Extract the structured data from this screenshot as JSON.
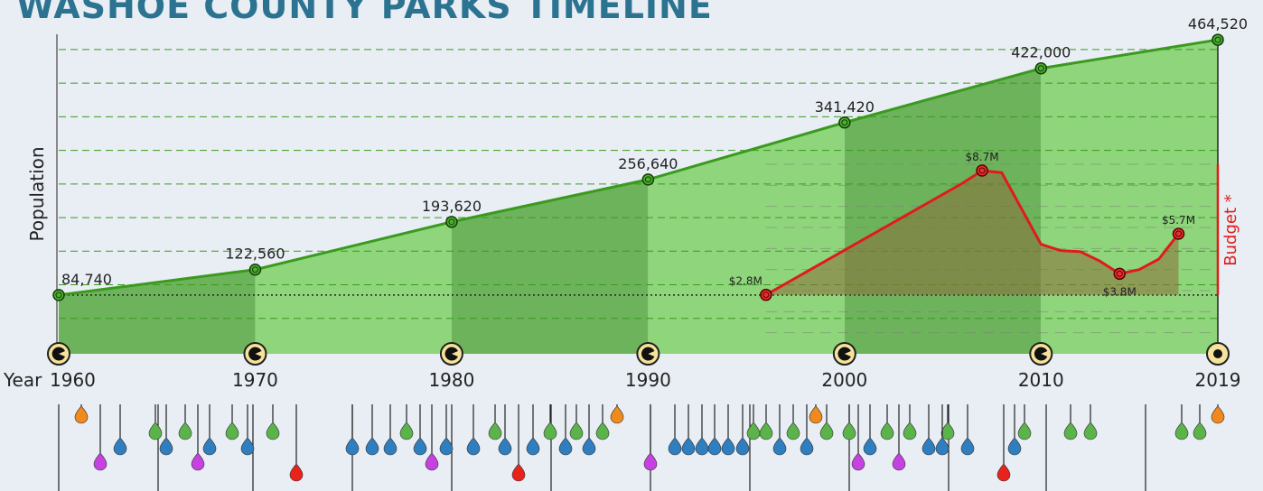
{
  "chart_data": {
    "type": "line",
    "title": "Washoe County Parks Timeline",
    "x_label": "Year",
    "y_label": "Population",
    "y2_label": "Budget *",
    "xlim": [
      1960,
      2019
    ],
    "xticks": [
      1960,
      1970,
      1980,
      1990,
      2000,
      2010,
      2019
    ],
    "ylim": [
      0,
      470000
    ],
    "yticks": [
      50000,
      100000,
      150000,
      200000,
      250000,
      300000,
      350000,
      400000,
      450000
    ],
    "y2lim": [
      0,
      9
    ],
    "y2ticks": [
      1,
      2,
      3,
      4,
      5,
      6,
      7,
      8,
      9
    ],
    "grid": true,
    "series": [
      {
        "name": "Population",
        "color": "#3a9a1e",
        "x": [
          1960,
          1970,
          1980,
          1990,
          2000,
          2010,
          2019
        ],
        "values": [
          84740,
          122560,
          193620,
          256640,
          341420,
          422000,
          464520
        ],
        "value_labels": [
          "84,740",
          "122,560",
          "193,620",
          "256,640",
          "341,420",
          "422,000",
          "464,520"
        ]
      },
      {
        "name": "Budget",
        "color": "#e01b1b",
        "axis": "y2",
        "x": [
          1996,
          2006,
          2007,
          2008,
          2009,
          2010,
          2011,
          2012,
          2013,
          2014,
          2015,
          2016,
          2017
        ],
        "values": [
          2.8,
          8.1,
          8.7,
          8.6,
          6.9,
          5.2,
          4.9,
          4.85,
          4.4,
          3.8,
          4.0,
          4.5,
          5.7
        ],
        "value_labels": [
          "$2.8M",
          null,
          "$8.7M",
          null,
          null,
          null,
          null,
          null,
          null,
          "$3.8M",
          null,
          null,
          "$5.7M"
        ]
      }
    ]
  }
}
